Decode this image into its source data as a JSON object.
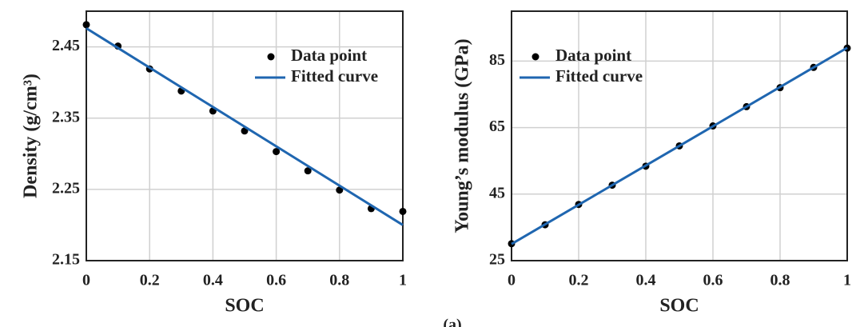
{
  "chart_data": [
    {
      "type": "scatter",
      "xlabel": "SOC",
      "ylabel": "Density (g/cm³)",
      "xlim": [
        0,
        1
      ],
      "xticks": [
        0,
        0.2,
        0.4,
        0.6,
        0.8,
        1
      ],
      "ylim": [
        2.15,
        2.5
      ],
      "yticks": [
        2.15,
        2.25,
        2.35,
        2.45
      ],
      "grid": true,
      "legend": "upper right",
      "series": [
        {
          "name": "Data point",
          "color": "#000000",
          "mode": "markers",
          "x": [
            0,
            0.1,
            0.2,
            0.3,
            0.4,
            0.5,
            0.6,
            0.7,
            0.8,
            0.9,
            1
          ],
          "values": [
            2.481,
            2.451,
            2.419,
            2.388,
            2.36,
            2.332,
            2.303,
            2.276,
            2.249,
            2.223,
            2.219
          ]
        },
        {
          "name": "Fitted curve",
          "color": "#1f66b0",
          "mode": "line",
          "x": [
            0,
            1
          ],
          "values": [
            2.476,
            2.2
          ]
        }
      ]
    },
    {
      "type": "scatter",
      "xlabel": "SOC",
      "ylabel": "Young’s modulus (GPa)",
      "xlim": [
        0,
        1
      ],
      "xticks": [
        0,
        0.2,
        0.4,
        0.6,
        0.8,
        1
      ],
      "ylim": [
        25,
        100
      ],
      "yticks": [
        25,
        45,
        65,
        85
      ],
      "grid": true,
      "legend": "upper left",
      "series": [
        {
          "name": "Data point",
          "color": "#000000",
          "mode": "markers",
          "x": [
            0,
            0.1,
            0.2,
            0.3,
            0.4,
            0.5,
            0.6,
            0.7,
            0.8,
            0.9,
            1
          ],
          "values": [
            30.1,
            35.8,
            41.9,
            47.7,
            53.4,
            59.5,
            65.5,
            71.3,
            77.0,
            83.1,
            88.9
          ]
        },
        {
          "name": "Fitted curve",
          "color": "#1f66b0",
          "mode": "line",
          "x": [
            0,
            1
          ],
          "values": [
            30,
            89
          ]
        }
      ]
    }
  ],
  "caption": "(a)"
}
